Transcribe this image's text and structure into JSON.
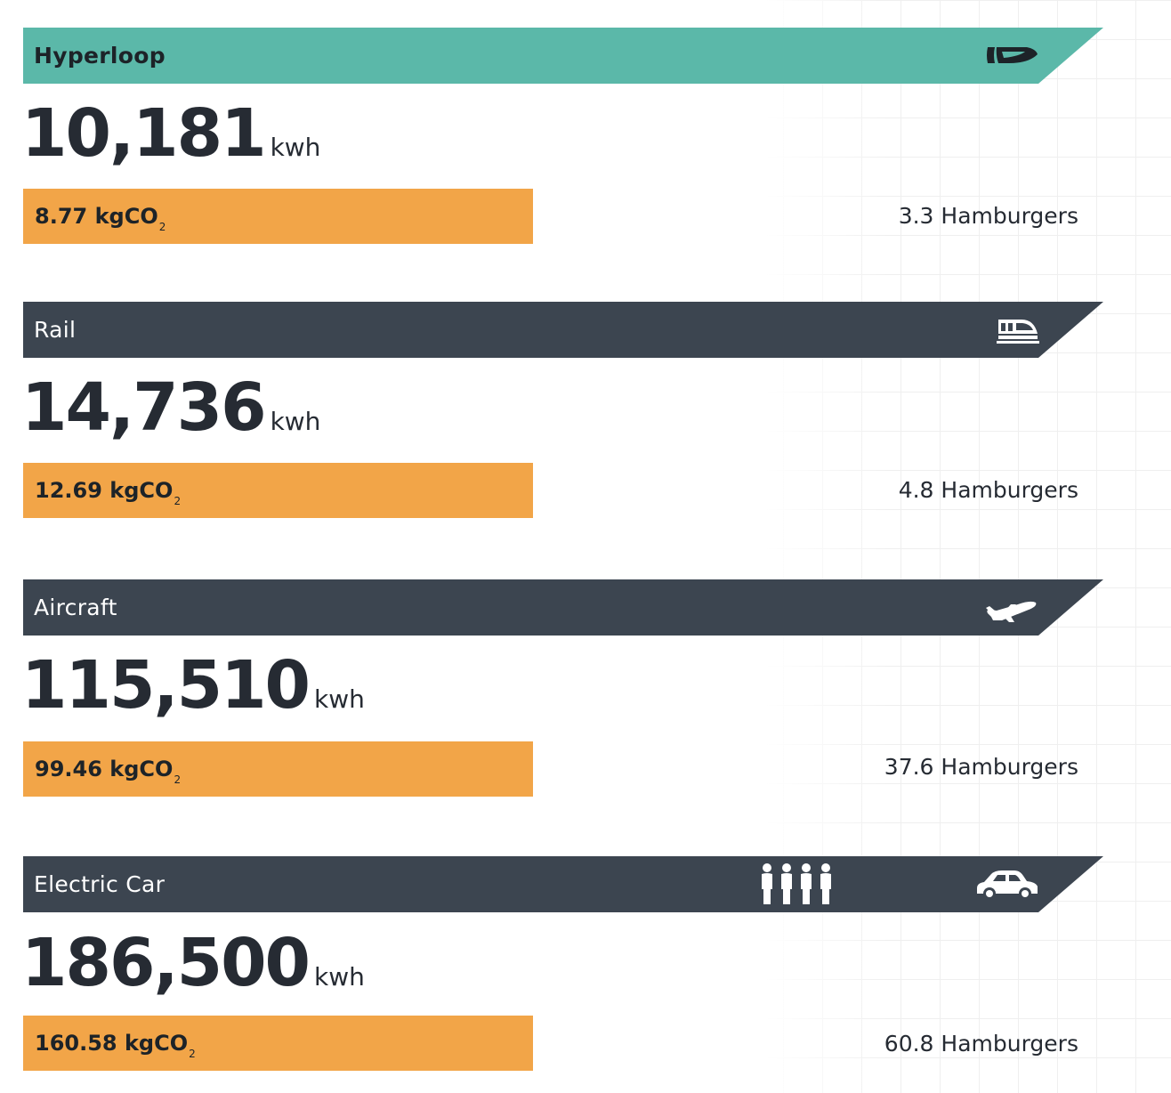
{
  "colors": {
    "hyperloop_banner": "#5bb8a9",
    "dark_banner": "#3c4550",
    "co2_bar": "#f2a548",
    "text": "#262b33"
  },
  "modes": [
    {
      "label": "Hyperloop",
      "icon": "hyperloop-pod-icon",
      "energy": "10,181",
      "energy_unit": "kwh",
      "co2_value": "8.77 kgCO",
      "co2_subscript": "2",
      "burgers": "3.3 Hamburgers"
    },
    {
      "label": "Rail",
      "icon": "train-icon",
      "energy": "14,736",
      "energy_unit": "kwh",
      "co2_value": "12.69 kgCO",
      "co2_subscript": "2",
      "burgers": "4.8 Hamburgers"
    },
    {
      "label": "Aircraft",
      "icon": "airplane-icon",
      "energy": "115,510",
      "energy_unit": "kwh",
      "co2_value": "99.46 kgCO",
      "co2_subscript": "2",
      "burgers": "37.6 Hamburgers"
    },
    {
      "label": "Electric Car",
      "icon": "car-icon",
      "extra_icon": "people-icon",
      "energy": "186,500",
      "energy_unit": "kwh",
      "co2_value": "160.58 kgCO",
      "co2_subscript": "2",
      "burgers": "60.8 Hamburgers"
    }
  ]
}
